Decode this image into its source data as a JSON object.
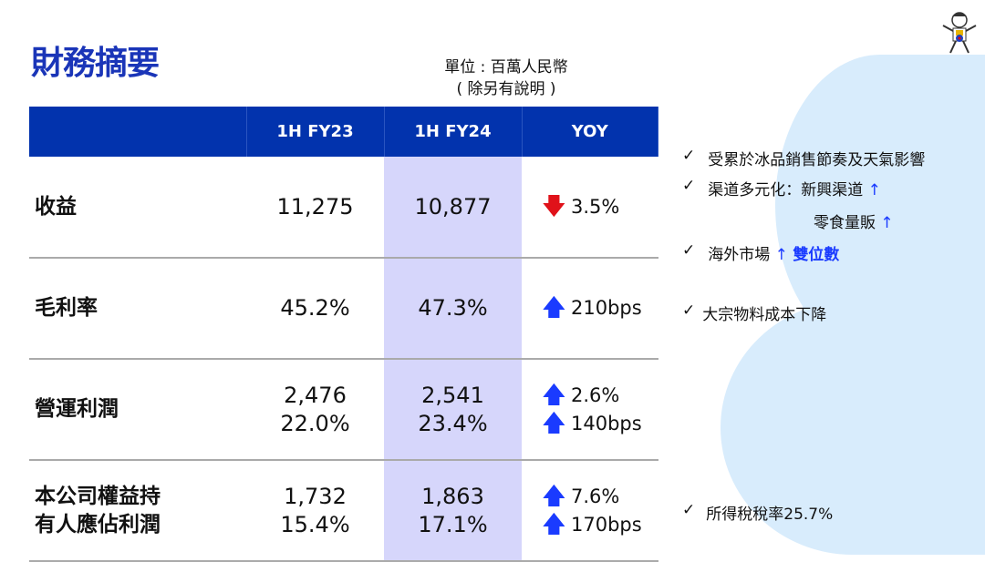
{
  "title": "財務摘要",
  "unit_line1": "單位 : 百萬人民幣",
  "unit_line2": "( 除另有說明 )",
  "headers": [
    "",
    "1H FY23",
    "1H FY24",
    "YOY"
  ],
  "rows": [
    {
      "label": [
        "收益"
      ],
      "fy23": [
        "11,275"
      ],
      "fy24": [
        "10,877"
      ],
      "yoy": [
        {
          "dir": "down",
          "value": "3.5%"
        }
      ]
    },
    {
      "label": [
        "毛利率"
      ],
      "fy23": [
        "45.2%"
      ],
      "fy24": [
        "47.3%"
      ],
      "yoy": [
        {
          "dir": "up",
          "value": "210bps"
        }
      ]
    },
    {
      "label": [
        "營運利潤"
      ],
      "fy23": [
        "2,476",
        "22.0%"
      ],
      "fy24": [
        "2,541",
        "23.4%"
      ],
      "yoy": [
        {
          "dir": "up",
          "value": "2.6%"
        },
        {
          "dir": "up",
          "value": "140bps"
        }
      ]
    },
    {
      "label": [
        "本公司權益持",
        "有人應佔利潤"
      ],
      "fy23": [
        "1,732",
        "15.4%"
      ],
      "fy24": [
        "1,863",
        "17.1%"
      ],
      "yoy": [
        {
          "dir": "up",
          "value": "7.6%"
        },
        {
          "dir": "up",
          "value": "170bps"
        }
      ]
    }
  ],
  "notes": {
    "n1": "受累於冰品銷售節奏及天氣影響",
    "n2": "渠道多元化：新興渠道",
    "n2b": "零食量販",
    "n3": "海外市場",
    "n3b": "雙位數",
    "n4": "大宗物料成本下降",
    "n5": "所得稅稅率25.7%",
    "check": "✓",
    "arrow": "↑"
  },
  "colors": {
    "header": "#0233ad",
    "highlight": "#d6d6fb",
    "up": "#1a3bff",
    "down": "#e0121a"
  }
}
